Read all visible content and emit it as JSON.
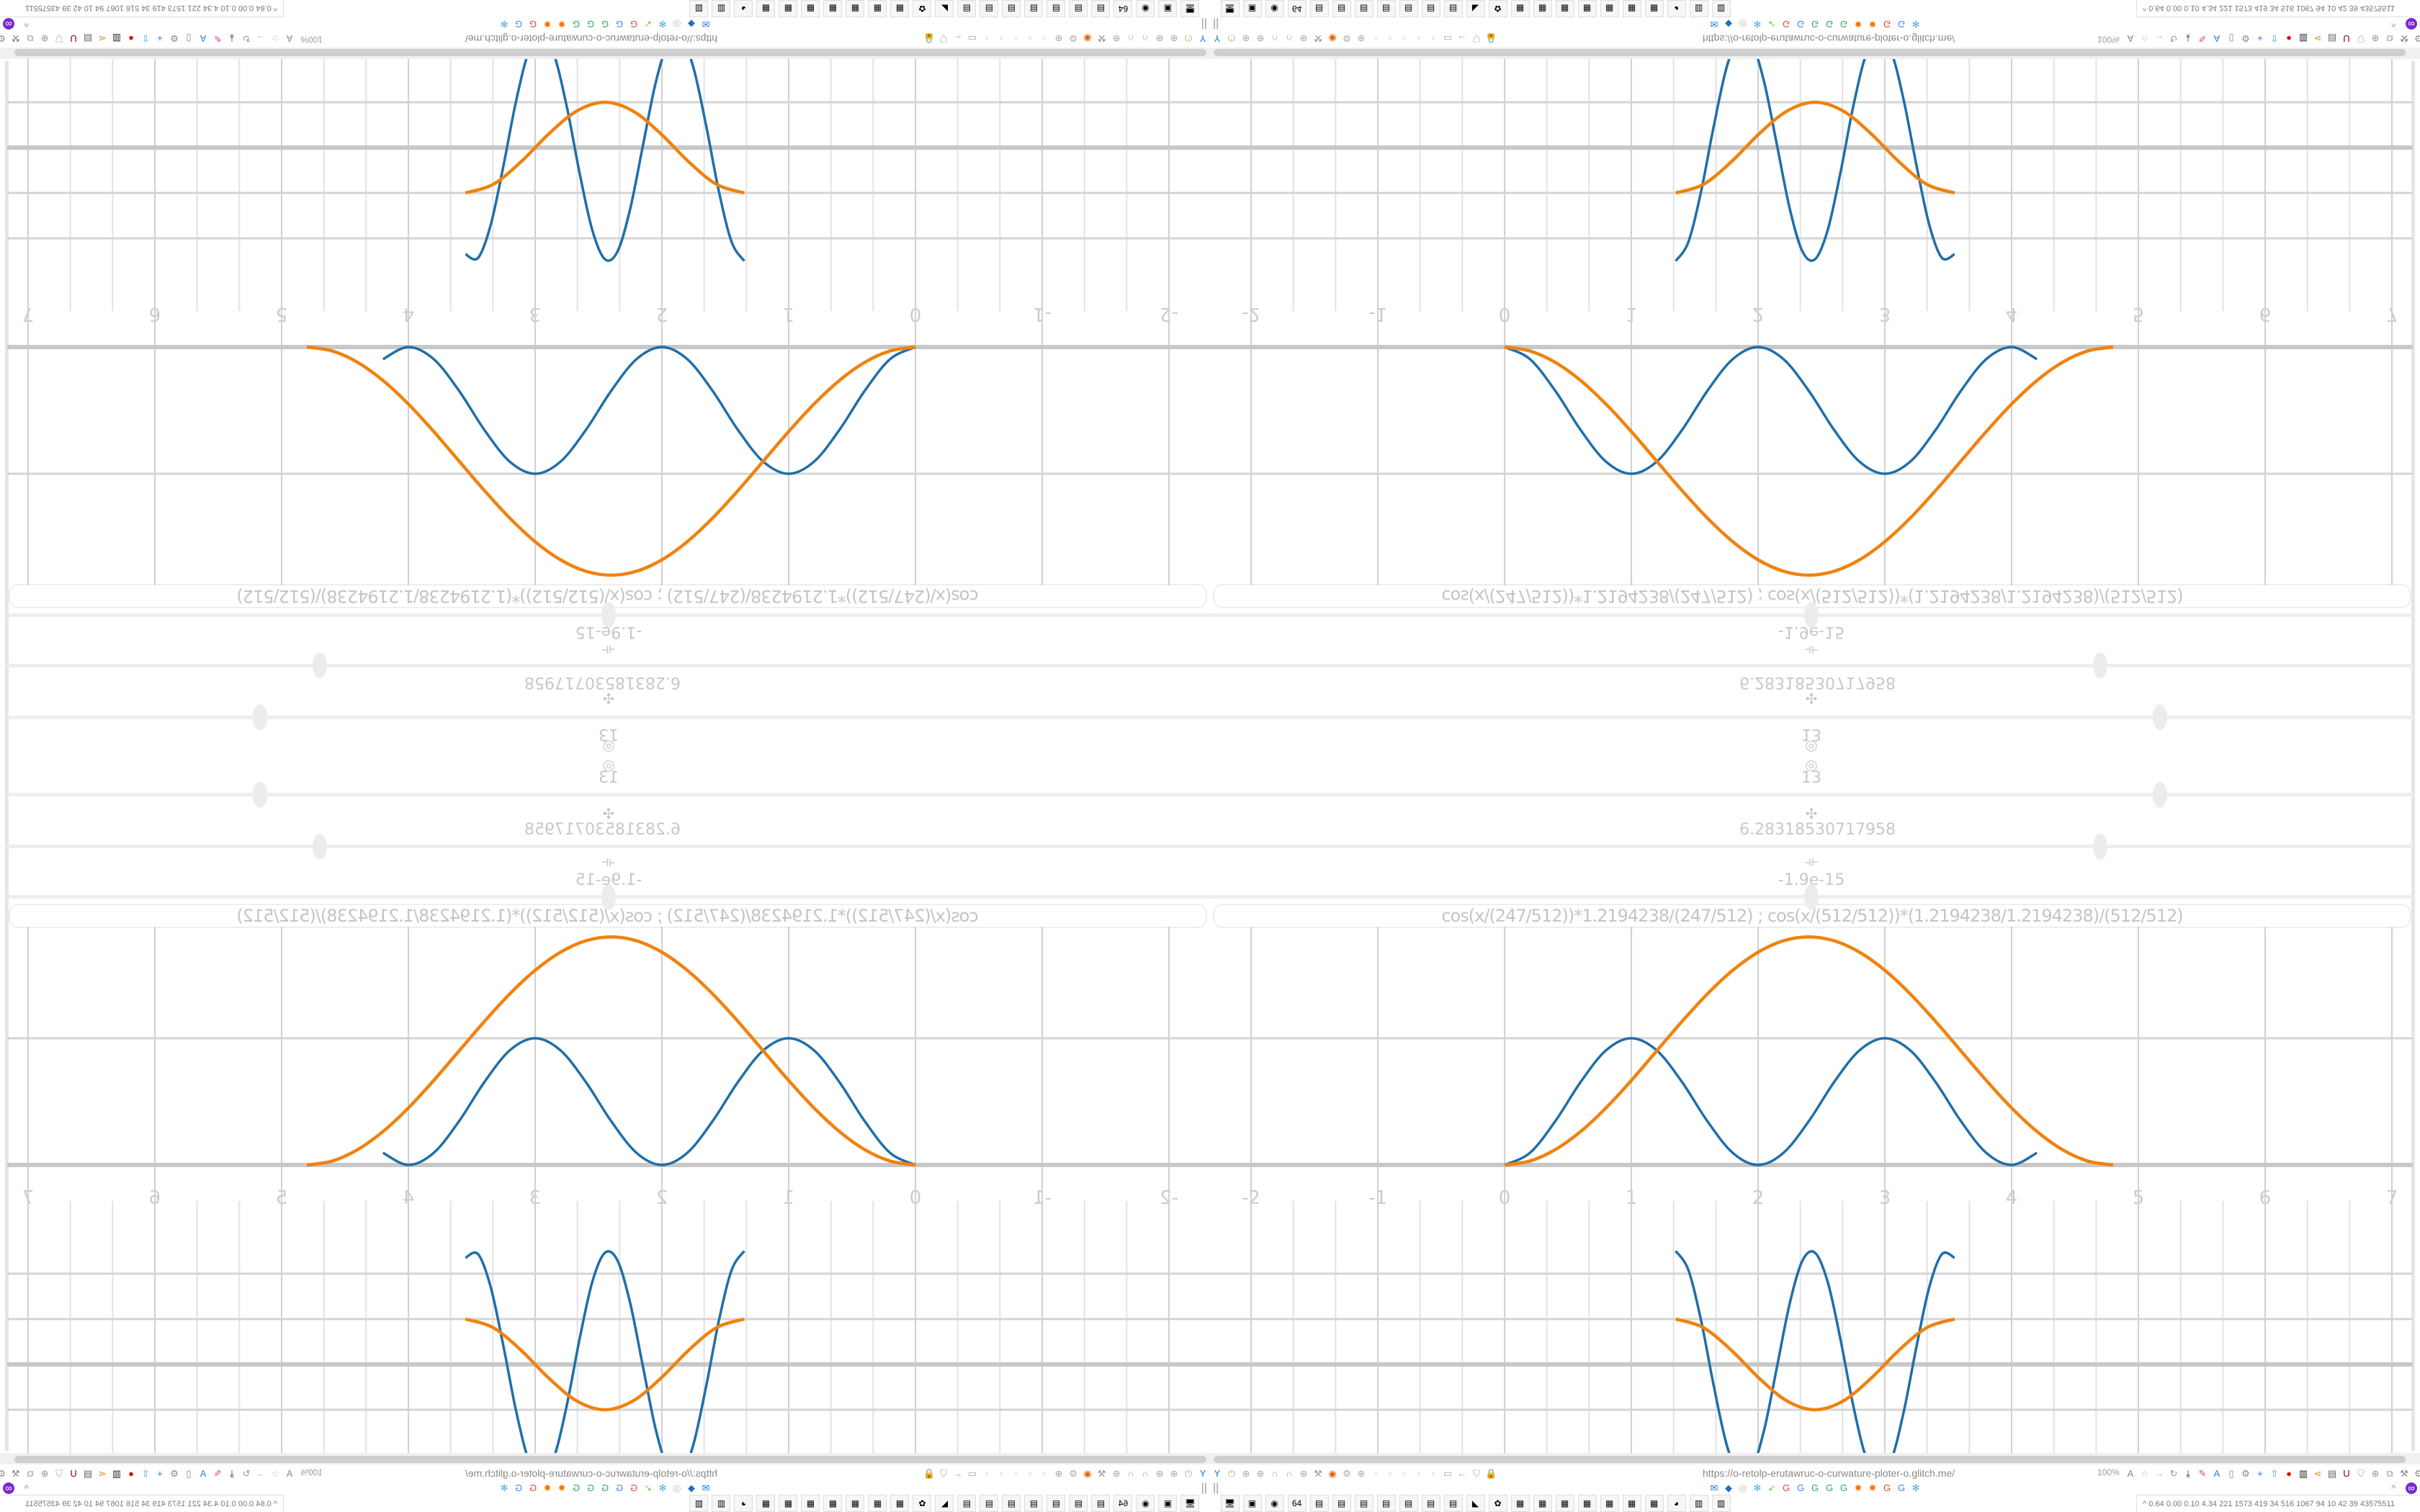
{
  "browser": {
    "url": "https://o-retolp-erutawruc-o-curwature-ploter-o.glitch.me/",
    "zoom": "100%",
    "toolbar_left_icons": [
      {
        "name": "filter-icon",
        "color": "#1e6fd9",
        "glyph": "Y"
      },
      {
        "name": "power-icon",
        "color": "#a9b87a",
        "glyph": "⏻"
      },
      {
        "name": "globe-icon",
        "color": "#aaaaaa",
        "glyph": "⊕"
      },
      {
        "name": "globe-icon",
        "color": "#aaaaaa",
        "glyph": "⊕"
      },
      {
        "name": "headphones-icon",
        "color": "#aaaaaa",
        "glyph": "∩"
      },
      {
        "name": "headphones-icon",
        "color": "#aaaaaa",
        "glyph": "∩"
      },
      {
        "name": "globe-icon",
        "color": "#aaaaaa",
        "glyph": "⊕"
      },
      {
        "name": "wrench-icon",
        "color": "#999999",
        "glyph": "⚒"
      },
      {
        "name": "firefox-icon",
        "color": "#e66000",
        "glyph": "◉"
      },
      {
        "name": "gear-icon",
        "color": "#aaaaaa",
        "glyph": "⚙"
      },
      {
        "name": "globe-icon",
        "color": "#aaaaaa",
        "glyph": "⊕"
      },
      {
        "name": "dot-icon",
        "color": "#bbbbbb",
        "glyph": "◦"
      },
      {
        "name": "dot-icon",
        "color": "#bbbbbb",
        "glyph": "◦"
      },
      {
        "name": "dot-icon",
        "color": "#bbbbbb",
        "glyph": "◦"
      },
      {
        "name": "dot-icon",
        "color": "#bbbbbb",
        "glyph": "◦"
      },
      {
        "name": "dot-icon",
        "color": "#bbbbbb",
        "glyph": "◦"
      },
      {
        "name": "folder-icon",
        "color": "#aaaaaa",
        "glyph": "▭"
      },
      {
        "name": "back-arrow-icon",
        "color": "#aaaaaa",
        "glyph": "←"
      },
      {
        "name": "shield-icon",
        "color": "#aaaaaa",
        "glyph": "⛉"
      },
      {
        "name": "lock-icon",
        "color": "#aaaaaa",
        "glyph": "🔒"
      }
    ],
    "toolbar_right_icons": [
      {
        "name": "translate-icon",
        "color": "#888888",
        "glyph": "A"
      },
      {
        "name": "star-icon",
        "color": "#bbbbbb",
        "glyph": "☆"
      },
      {
        "name": "forward-arrow-icon",
        "color": "#bbbbbb",
        "glyph": "→"
      },
      {
        "name": "reload-icon",
        "color": "#999999",
        "glyph": "↻"
      },
      {
        "name": "download-icon",
        "color": "#222222",
        "glyph": "⤓"
      },
      {
        "name": "pencil-icon",
        "color": "#e040a0",
        "glyph": "✎"
      },
      {
        "name": "translate-icon",
        "color": "#3b7ddd",
        "glyph": "A"
      },
      {
        "name": "mouse-icon",
        "color": "#888888",
        "glyph": "▯"
      },
      {
        "name": "gear-icon",
        "color": "#888888",
        "glyph": "⚙"
      },
      {
        "name": "plus-icon",
        "color": "#1a73e8",
        "glyph": "+"
      },
      {
        "name": "upload-icon",
        "color": "#3aa0e0",
        "glyph": "⇧"
      },
      {
        "name": "record-icon",
        "color": "#e01010",
        "glyph": "●"
      },
      {
        "name": "trash-icon",
        "color": "#222222",
        "glyph": "▥"
      },
      {
        "name": "share-icon",
        "color": "#e09020",
        "glyph": "⋖"
      },
      {
        "name": "archive-icon",
        "color": "#666666",
        "glyph": "▤"
      },
      {
        "name": "ublock-icon",
        "color": "#800000",
        "glyph": "U"
      },
      {
        "name": "shield-icon",
        "color": "#9aaabb",
        "glyph": "⛉"
      },
      {
        "name": "globe-icon",
        "color": "#999999",
        "glyph": "⊕"
      },
      {
        "name": "puzzle-icon",
        "color": "#999999",
        "glyph": "⧉"
      },
      {
        "name": "wrench-icon",
        "color": "#888888",
        "glyph": "⚒"
      },
      {
        "name": "gear-icon",
        "color": "#888888",
        "glyph": "⚙"
      },
      {
        "name": "status-dot-icon",
        "color": "#20b090",
        "glyph": "•"
      }
    ],
    "bookmark_icons": [
      {
        "name": "mail-icon",
        "color": "#1a73e8",
        "glyph": "✉"
      },
      {
        "name": "bookmark-icon",
        "color": "#1f6fc0",
        "glyph": "◆"
      },
      {
        "name": "speaker-icon",
        "color": "#bbbbbb",
        "glyph": "◎"
      },
      {
        "name": "network-icon",
        "color": "#55aadd",
        "glyph": "✻"
      },
      {
        "name": "rocket-icon",
        "color": "#66cc44",
        "glyph": "➶"
      },
      {
        "name": "google-icon",
        "color": "#ea4335",
        "glyph": "G"
      },
      {
        "name": "google-icon",
        "color": "#4285f4",
        "glyph": "G"
      },
      {
        "name": "google-icon",
        "color": "#34a853",
        "glyph": "G"
      },
      {
        "name": "google-icon",
        "color": "#34a853",
        "glyph": "G"
      },
      {
        "name": "google-icon",
        "color": "#34a853",
        "glyph": "G"
      },
      {
        "name": "sun-icon",
        "color": "#ff7700",
        "glyph": "✹"
      },
      {
        "name": "sun-icon",
        "color": "#ff7700",
        "glyph": "✹"
      },
      {
        "name": "google-icon",
        "color": "#ea4335",
        "glyph": "G"
      },
      {
        "name": "google-icon",
        "color": "#4285f4",
        "glyph": "G"
      },
      {
        "name": "network-icon",
        "color": "#55aadd",
        "glyph": "✻"
      }
    ],
    "chevron_up": "^",
    "sidebar_toggle": "||"
  },
  "taskbar": {
    "apps": [
      {
        "name": "monitor-app-icon",
        "glyph": "🖥"
      },
      {
        "name": "terminal-app-icon",
        "glyph": "▣"
      },
      {
        "name": "firefox-app-icon",
        "glyph": "◉"
      },
      {
        "name": "floppy-app-icon",
        "glyph": "64"
      },
      {
        "name": "notepad-app-icon",
        "glyph": "▤"
      },
      {
        "name": "notepad-app-icon",
        "glyph": "▤"
      },
      {
        "name": "notepad-app-icon",
        "glyph": "▤"
      },
      {
        "name": "notepad-app-icon",
        "glyph": "▤"
      },
      {
        "name": "notepad-app-icon",
        "glyph": "▤"
      },
      {
        "name": "notepad-app-icon",
        "glyph": "▤"
      },
      {
        "name": "notepad-app-icon",
        "glyph": "▤"
      },
      {
        "name": "inkscape-app-icon",
        "glyph": "◣"
      },
      {
        "name": "settings-app-icon",
        "glyph": "✿"
      },
      {
        "name": "calculator-app-icon",
        "glyph": "▦"
      },
      {
        "name": "calculator-app-icon",
        "glyph": "▦"
      },
      {
        "name": "calculator-app-icon",
        "glyph": "▦"
      },
      {
        "name": "calculator-app-icon",
        "glyph": "▦"
      },
      {
        "name": "calculator-app-icon",
        "glyph": "▦"
      },
      {
        "name": "calculator-app-icon",
        "glyph": "▦"
      },
      {
        "name": "calculator-app-icon",
        "glyph": "▦"
      },
      {
        "name": "tor-app-icon",
        "glyph": "◕"
      },
      {
        "name": "document-app-icon",
        "glyph": "▥"
      },
      {
        "name": "document-app-icon",
        "glyph": "▥"
      }
    ],
    "stats": "0.64 0.00 0.10 4.34  221 1573 419  34  516 1067  94   10   42   39  43575511",
    "stats_toggle": "^"
  },
  "controls": {
    "slider_1": {
      "icon": "target-icon",
      "icon_glyph": "◎",
      "value": "13",
      "fraction": 0.79
    },
    "slider_2": {
      "icon": "clover-icon",
      "icon_glyph": "✣",
      "value": "6.28318530717958",
      "fraction": 0.74
    },
    "slider_3": {
      "icon": "width-icon",
      "icon_glyph": "⟛",
      "value": "-1.9e-15",
      "fraction": 0.5
    },
    "formula": "cos(x/(247/512))*1.2194238/(247/512)   ;   cos(x/(512/512))*(1.2194238/1.2194238)/(512/512)"
  },
  "colors": {
    "series_blue": "#1f6fa8",
    "series_orange": "#f0820f",
    "grid": "#d4d4d4",
    "axis": "#c8c8c8",
    "tick_text": "#cccccc"
  },
  "chart_data": [
    {
      "type": "line",
      "xlim": [
        -2,
        7
      ],
      "x_ticks": [
        "-2",
        "-1",
        "0",
        "1",
        "2",
        "3",
        "4",
        "5",
        "6",
        "7"
      ],
      "grid": true,
      "series": [
        {
          "color": "#1f6fa8",
          "x": [
            0,
            0.2,
            0.4,
            0.6,
            0.8,
            1,
            1.2,
            1.4,
            1.6,
            1.8,
            2,
            2.2,
            2.4,
            2.6,
            2.8,
            3,
            3.2,
            3.4,
            3.6,
            3.8,
            4,
            4.2
          ],
          "y": [
            0,
            0.0955,
            0.3455,
            0.6545,
            0.9045,
            1,
            0.9045,
            0.6545,
            0.3455,
            0.0955,
            0,
            0.0955,
            0.3455,
            0.6545,
            0.9045,
            1,
            0.9045,
            0.6545,
            0.3455,
            0.0955,
            0,
            0.0955
          ]
        },
        {
          "color": "#f0820f",
          "x": [
            0,
            0.2,
            0.4,
            0.6,
            0.8,
            1,
            1.2,
            1.4,
            1.6,
            1.8,
            2,
            2.2,
            2.4,
            2.6,
            2.8,
            3,
            3.2,
            3.4,
            3.6,
            3.8,
            4,
            4.2,
            4.4,
            4.6,
            4.8
          ],
          "y": [
            0,
            0.031,
            0.121,
            0.264,
            0.45,
            0.667,
            0.9,
            1.133,
            1.35,
            1.536,
            1.679,
            1.769,
            1.8,
            1.769,
            1.679,
            1.536,
            1.35,
            1.133,
            0.9,
            0.667,
            0.45,
            0.264,
            0.121,
            0.031,
            0
          ]
        }
      ]
    },
    {
      "type": "line",
      "xlim": [
        -2,
        7
      ],
      "ylim": [
        -2.8,
        2.8
      ],
      "x_ticks": [
        "-2",
        "-1",
        "0",
        "1",
        "2",
        "3",
        "4",
        "5",
        "6",
        "7"
      ],
      "grid": true,
      "series": [
        {
          "color": "#1f6fa8",
          "x": [
            1.35,
            1.45,
            1.55,
            1.65,
            1.75,
            1.85,
            1.95,
            2.05,
            2.15,
            2.25,
            2.35,
            2.45,
            2.55,
            2.65,
            2.75,
            2.85,
            2.95,
            3.05,
            3.15,
            3.25,
            3.35,
            3.45,
            3.55
          ],
          "y": [
            2.5,
            2.08,
            0.97,
            -0.47,
            -1.75,
            -2.45,
            -2.32,
            -1.42,
            -0.04,
            1.35,
            2.29,
            2.46,
            1.81,
            0.55,
            -0.9,
            -2.04,
            -2.5,
            -2.12,
            -1.03,
            0.4,
            1.7,
            2.43,
            2.35
          ]
        },
        {
          "color": "#f0820f",
          "x": [
            1.35,
            1.57,
            1.79,
            2.01,
            2.23,
            2.45,
            2.67,
            2.89,
            3.11,
            3.33,
            3.55
          ],
          "y": [
            1,
            0.809,
            0.309,
            -0.309,
            -0.809,
            -1,
            -0.809,
            -0.309,
            0.309,
            0.809,
            1
          ]
        }
      ]
    }
  ]
}
